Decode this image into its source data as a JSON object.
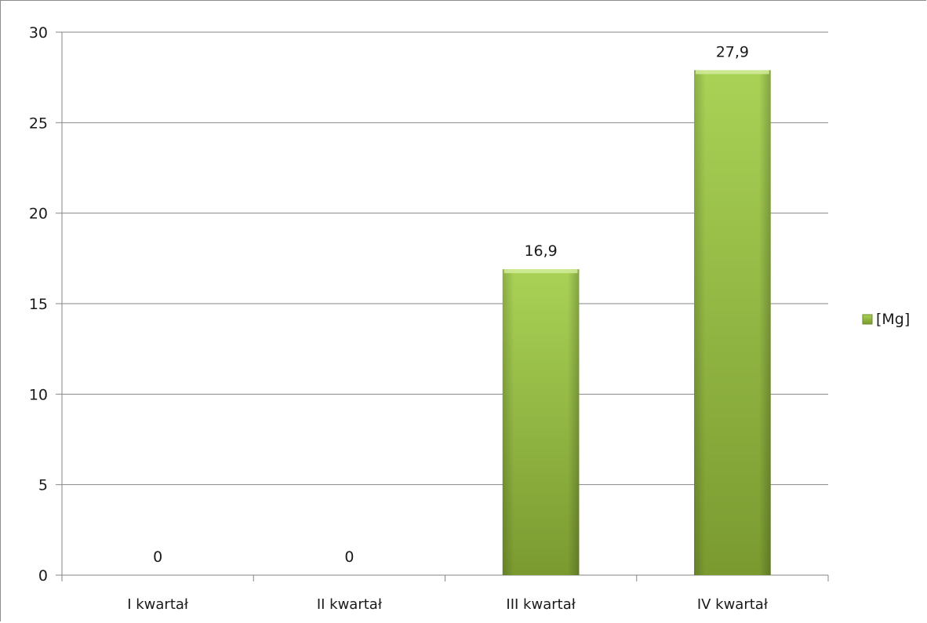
{
  "chart_data": {
    "type": "bar",
    "title": "",
    "xlabel": "",
    "ylabel": "",
    "categories": [
      "I kwartał",
      "II kwartał",
      "III kwartał",
      "IV kwartał"
    ],
    "series": [
      {
        "name": "[Mg]",
        "values": [
          0,
          0,
          16.9,
          27.9
        ],
        "color": "#8db23a"
      }
    ],
    "data_labels": [
      "0",
      "0",
      "16,9",
      "27,9"
    ],
    "ylim": [
      0,
      30
    ],
    "yticks": [
      0,
      5,
      10,
      15,
      20,
      25,
      30
    ],
    "ytick_labels": [
      "0",
      "5",
      "10",
      "15",
      "20",
      "25",
      "30"
    ],
    "grid": true,
    "legend_position": "right"
  }
}
